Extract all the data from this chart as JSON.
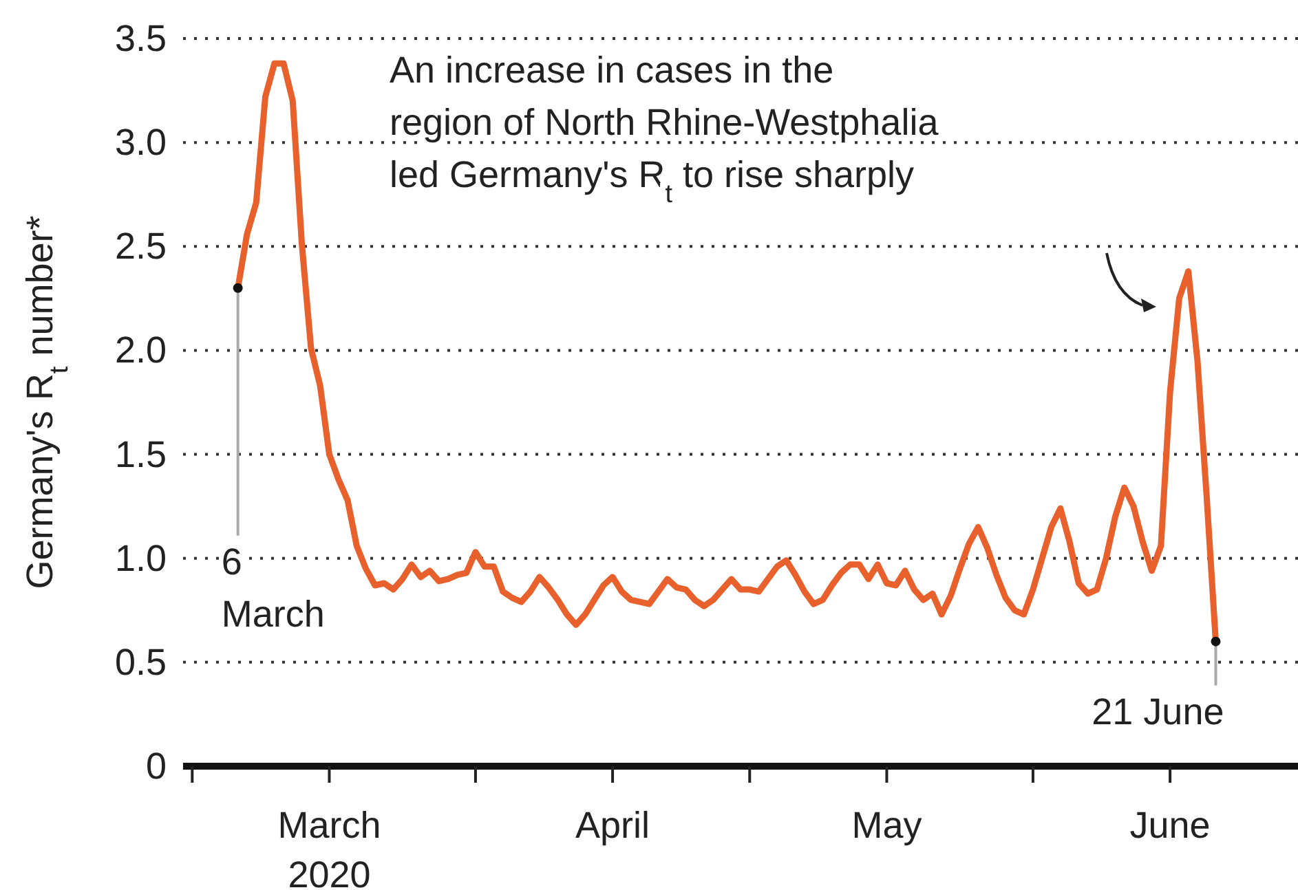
{
  "chart_data": {
    "type": "line",
    "ylabel": "Germany's R$_{t}$ number*",
    "x": [
      "2020-03-06",
      "2020-03-07",
      "2020-03-08",
      "2020-03-09",
      "2020-03-10",
      "2020-03-11",
      "2020-03-12",
      "2020-03-13",
      "2020-03-14",
      "2020-03-15",
      "2020-03-16",
      "2020-03-17",
      "2020-03-18",
      "2020-03-19",
      "2020-03-20",
      "2020-03-21",
      "2020-03-22",
      "2020-03-23",
      "2020-03-24",
      "2020-03-25",
      "2020-03-26",
      "2020-03-27",
      "2020-03-28",
      "2020-03-29",
      "2020-03-30",
      "2020-03-31",
      "2020-04-01",
      "2020-04-02",
      "2020-04-03",
      "2020-04-04",
      "2020-04-05",
      "2020-04-06",
      "2020-04-07",
      "2020-04-08",
      "2020-04-09",
      "2020-04-10",
      "2020-04-11",
      "2020-04-12",
      "2020-04-13",
      "2020-04-14",
      "2020-04-15",
      "2020-04-16",
      "2020-04-17",
      "2020-04-18",
      "2020-04-19",
      "2020-04-20",
      "2020-04-21",
      "2020-04-22",
      "2020-04-23",
      "2020-04-24",
      "2020-04-25",
      "2020-04-26",
      "2020-04-27",
      "2020-04-28",
      "2020-04-29",
      "2020-04-30",
      "2020-05-01",
      "2020-05-02",
      "2020-05-03",
      "2020-05-04",
      "2020-05-05",
      "2020-05-06",
      "2020-05-07",
      "2020-05-08",
      "2020-05-09",
      "2020-05-10",
      "2020-05-11",
      "2020-05-12",
      "2020-05-13",
      "2020-05-14",
      "2020-05-15",
      "2020-05-16",
      "2020-05-17",
      "2020-05-18",
      "2020-05-19",
      "2020-05-20",
      "2020-05-21",
      "2020-05-22",
      "2020-05-23",
      "2020-05-24",
      "2020-05-25",
      "2020-05-26",
      "2020-05-27",
      "2020-05-28",
      "2020-05-29",
      "2020-05-30",
      "2020-05-31",
      "2020-06-01",
      "2020-06-02",
      "2020-06-03",
      "2020-06-04",
      "2020-06-05",
      "2020-06-06",
      "2020-06-07",
      "2020-06-08",
      "2020-06-09",
      "2020-06-10",
      "2020-06-11",
      "2020-06-12",
      "2020-06-13",
      "2020-06-14",
      "2020-06-15",
      "2020-06-16",
      "2020-06-17",
      "2020-06-18",
      "2020-06-19",
      "2020-06-20",
      "2020-06-21"
    ],
    "series": [
      {
        "color": "#e8602c",
        "values": [
          2.3,
          2.56,
          2.71,
          3.22,
          3.38,
          3.38,
          3.2,
          2.51,
          2.01,
          1.83,
          1.5,
          1.38,
          1.28,
          1.06,
          0.95,
          0.87,
          0.88,
          0.85,
          0.9,
          0.97,
          0.91,
          0.94,
          0.89,
          0.9,
          0.92,
          0.93,
          1.03,
          0.96,
          0.96,
          0.84,
          0.81,
          0.79,
          0.84,
          0.91,
          0.86,
          0.8,
          0.73,
          0.68,
          0.73,
          0.8,
          0.87,
          0.91,
          0.84,
          0.8,
          0.79,
          0.78,
          0.84,
          0.9,
          0.86,
          0.85,
          0.8,
          0.77,
          0.8,
          0.85,
          0.9,
          0.85,
          0.85,
          0.84,
          0.9,
          0.96,
          0.99,
          0.92,
          0.84,
          0.78,
          0.8,
          0.87,
          0.93,
          0.97,
          0.97,
          0.9,
          0.97,
          0.88,
          0.87,
          0.94,
          0.85,
          0.8,
          0.83,
          0.73,
          0.82,
          0.95,
          1.07,
          1.15,
          1.05,
          0.92,
          0.81,
          0.75,
          0.73,
          0.85,
          1.0,
          1.15,
          1.24,
          1.08,
          0.88,
          0.83,
          0.85,
          1.0,
          1.2,
          1.34,
          1.25,
          1.08,
          0.94,
          1.06,
          1.8,
          2.25,
          2.38,
          1.95,
          1.3,
          0.6
        ]
      }
    ],
    "xlim": [
      "2020-02-29",
      "2020-06-30"
    ],
    "xticks": [
      {
        "value": "2020-03-01",
        "label": null
      },
      {
        "value": "2020-03-16",
        "label": "March 2020"
      },
      {
        "value": "2020-04-01",
        "label": null
      },
      {
        "value": "2020-04-16",
        "label": "April"
      },
      {
        "value": "2020-05-01",
        "label": null
      },
      {
        "value": "2020-05-16",
        "label": "May"
      },
      {
        "value": "2020-06-01",
        "label": null
      },
      {
        "value": "2020-06-16",
        "label": "June"
      }
    ],
    "ylim": [
      0,
      3.5
    ],
    "yticks": [
      0,
      0.5,
      {
        "value": 1,
        "label": "1.0"
      },
      1.5,
      {
        "value": 2,
        "label": "2.0"
      },
      2.5,
      {
        "value": 3,
        "label": "3.0"
      },
      3.5
    ],
    "grid": "y",
    "annotations": [
      {
        "text": "6 March",
        "x": "2020-03-06",
        "y": 2.3
      },
      "An increase in cases in the region of North Rhine-Westphalia led Germany's R$_{t}$ to rise sharply",
      {
        "text": "21 June",
        "x": "2020-06-21",
        "y": 0.6
      }
    ]
  }
}
